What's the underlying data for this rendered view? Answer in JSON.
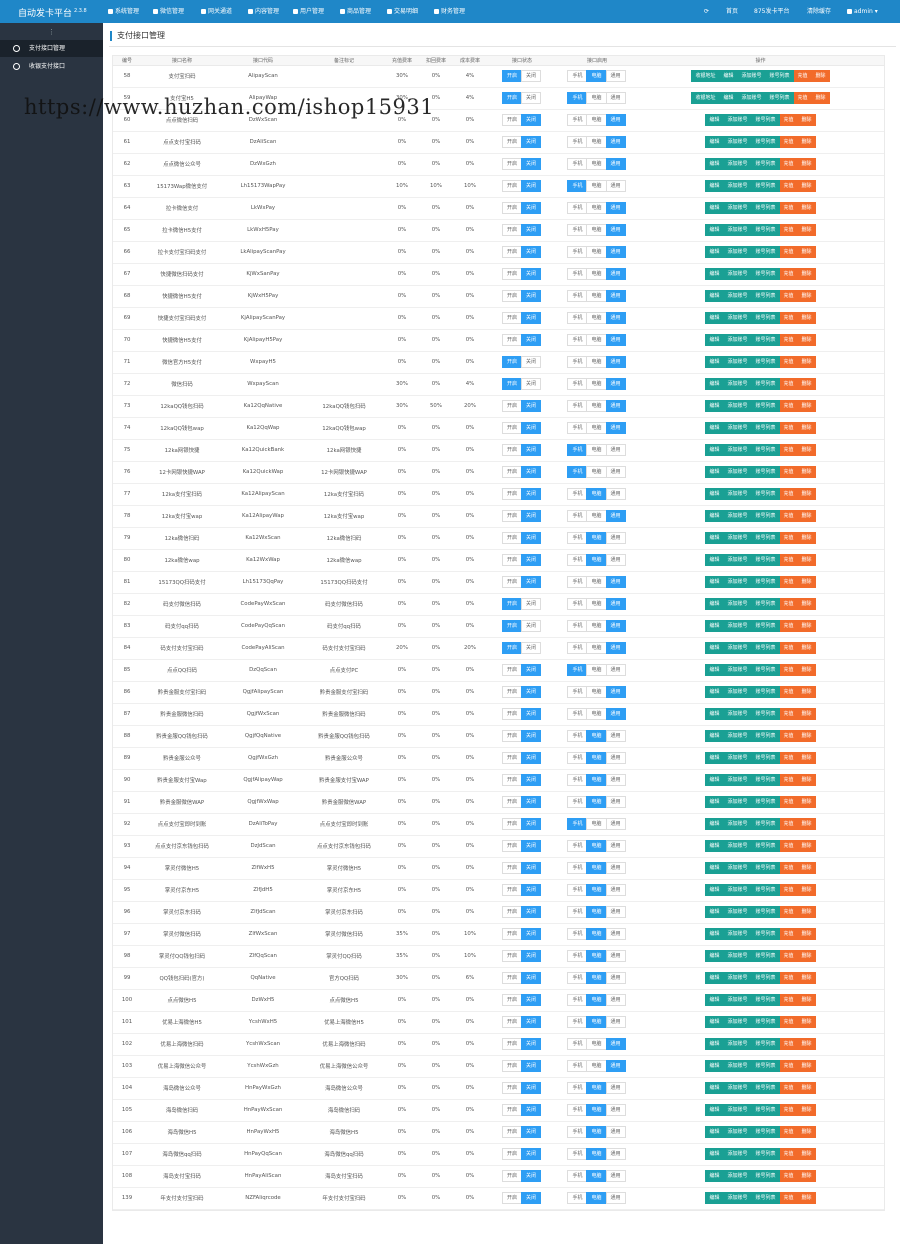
{
  "app": {
    "title": "自动发卡平台",
    "version": "2.3.8"
  },
  "topnav": [
    "系统管理",
    "微信管理",
    "网关通道",
    "内容管理",
    "用户管理",
    "商品管理",
    "交易明细",
    "财务管理"
  ],
  "topright": {
    "home": "首页",
    "site": "875发卡平台",
    "clear": "清除缓存",
    "user": "admin"
  },
  "sidebar": [
    "支付接口管理",
    "收银支付接口"
  ],
  "page": {
    "title": "支付接口管理"
  },
  "columns": [
    "编号",
    "接口名称",
    "接口代码",
    "备注标记",
    "充值费率",
    "扣回费率",
    "成本费率",
    "接口状态",
    "接口启用",
    "操作"
  ],
  "labels": {
    "open": "开启",
    "close": "关闭",
    "mobile": "手机",
    "pc": "电脑",
    "general": "通用",
    "order_addr": "收银地址",
    "edit": "编辑",
    "add_account": "添加账号",
    "account_list": "账号列表",
    "recharge": "充值",
    "delete": "删除"
  },
  "colors": {
    "topbar": "#1f87c8",
    "sidebar": "#2a3441",
    "on": "#2e9ef4",
    "green": "#1aa094",
    "orange": "#f26b2a"
  },
  "watermark": "https://www.huzhan.com/ishop15931",
  "rows": [
    {
      "id": "58",
      "name": "支付宝扫码",
      "code": "AlipayScan",
      "note": "",
      "r1": "30%",
      "r2": "0%",
      "r3": "4%",
      "status": "open",
      "mode": "pc",
      "extra": true
    },
    {
      "id": "59",
      "name": "支付宝H5",
      "code": "AlipayWap",
      "note": "",
      "r1": "30%",
      "r2": "0%",
      "r3": "4%",
      "status": "open",
      "mode": "mobile",
      "extra": true
    },
    {
      "id": "60",
      "name": "点点微信扫码",
      "code": "DzWxScan",
      "note": "",
      "r1": "0%",
      "r2": "0%",
      "r3": "0%",
      "status": "close",
      "mode": "general",
      "extra": false
    },
    {
      "id": "61",
      "name": "点点支付宝扫码",
      "code": "DzAliScan",
      "note": "",
      "r1": "0%",
      "r2": "0%",
      "r3": "0%",
      "status": "close",
      "mode": "general",
      "extra": false
    },
    {
      "id": "62",
      "name": "点点微信公众号",
      "code": "DzWxGzh",
      "note": "",
      "r1": "0%",
      "r2": "0%",
      "r3": "0%",
      "status": "close",
      "mode": "general",
      "extra": false
    },
    {
      "id": "63",
      "name": "15173Wap微信支付",
      "code": "Lh15173WapPay",
      "note": "",
      "r1": "10%",
      "r2": "10%",
      "r3": "10%",
      "status": "close",
      "mode": "mobile",
      "extra": false
    },
    {
      "id": "64",
      "name": "拉卡微信支付",
      "code": "LkWxPay",
      "note": "",
      "r1": "0%",
      "r2": "0%",
      "r3": "0%",
      "status": "close",
      "mode": "general",
      "extra": false
    },
    {
      "id": "65",
      "name": "拉卡微信H5支付",
      "code": "LkWxH5Pay",
      "note": "",
      "r1": "0%",
      "r2": "0%",
      "r3": "0%",
      "status": "close",
      "mode": "general",
      "extra": false
    },
    {
      "id": "66",
      "name": "拉卡支付宝扫码支付",
      "code": "LkAlipayScanPay",
      "note": "",
      "r1": "0%",
      "r2": "0%",
      "r3": "0%",
      "status": "close",
      "mode": "general",
      "extra": false
    },
    {
      "id": "67",
      "name": "快捷微信扫码支付",
      "code": "KjWxSanPay",
      "note": "",
      "r1": "0%",
      "r2": "0%",
      "r3": "0%",
      "status": "close",
      "mode": "general",
      "extra": false
    },
    {
      "id": "68",
      "name": "快捷微信H5支付",
      "code": "KjWxH5Pay",
      "note": "",
      "r1": "0%",
      "r2": "0%",
      "r3": "0%",
      "status": "close",
      "mode": "general",
      "extra": false
    },
    {
      "id": "69",
      "name": "快捷支付宝扫码支付",
      "code": "KjAlipayScanPay",
      "note": "",
      "r1": "0%",
      "r2": "0%",
      "r3": "0%",
      "status": "close",
      "mode": "general",
      "extra": false
    },
    {
      "id": "70",
      "name": "快捷微信H5支付",
      "code": "KjAlipayH5Pay",
      "note": "",
      "r1": "0%",
      "r2": "0%",
      "r3": "0%",
      "status": "close",
      "mode": "general",
      "extra": false
    },
    {
      "id": "71",
      "name": "微信官方H5支付",
      "code": "WxpayH5",
      "note": "",
      "r1": "0%",
      "r2": "0%",
      "r3": "0%",
      "status": "open",
      "mode": "general",
      "extra": false
    },
    {
      "id": "72",
      "name": "微信扫码",
      "code": "WxpayScan",
      "note": "",
      "r1": "30%",
      "r2": "0%",
      "r3": "4%",
      "status": "open",
      "mode": "general",
      "extra": false
    },
    {
      "id": "73",
      "name": "12kaQQ钱包扫码",
      "code": "Ka12QqNative",
      "note": "12kaQQ钱包扫码",
      "r1": "30%",
      "r2": "50%",
      "r3": "20%",
      "status": "close",
      "mode": "general",
      "extra": false
    },
    {
      "id": "74",
      "name": "12kaQQ钱包wap",
      "code": "Ka12QqWap",
      "note": "12kaQQ钱包wap",
      "r1": "0%",
      "r2": "0%",
      "r3": "0%",
      "status": "close",
      "mode": "general",
      "extra": false
    },
    {
      "id": "75",
      "name": "12ka网银快捷",
      "code": "Ka12QuickBank",
      "note": "12ka网银快捷",
      "r1": "0%",
      "r2": "0%",
      "r3": "0%",
      "status": "close",
      "mode": "mobile",
      "extra": false
    },
    {
      "id": "76",
      "name": "12卡网银快捷WAP",
      "code": "Ka12QuickWap",
      "note": "12卡网银快捷WAP",
      "r1": "0%",
      "r2": "0%",
      "r3": "0%",
      "status": "close",
      "mode": "mobile",
      "extra": false
    },
    {
      "id": "77",
      "name": "12ka支付宝扫码",
      "code": "Ka12AlipayScan",
      "note": "12ka支付宝扫码",
      "r1": "0%",
      "r2": "0%",
      "r3": "0%",
      "status": "close",
      "mode": "pc",
      "extra": false
    },
    {
      "id": "78",
      "name": "12ka支付宝wap",
      "code": "Ka12AlipayWap",
      "note": "12ka支付宝wap",
      "r1": "0%",
      "r2": "0%",
      "r3": "0%",
      "status": "close",
      "mode": "general",
      "extra": false
    },
    {
      "id": "79",
      "name": "12ka微信扫码",
      "code": "Ka12WxScan",
      "note": "12ka微信扫码",
      "r1": "0%",
      "r2": "0%",
      "r3": "0%",
      "status": "close",
      "mode": "pc",
      "extra": false
    },
    {
      "id": "80",
      "name": "12ka微信wap",
      "code": "Ka12WxWap",
      "note": "12ka微信wap",
      "r1": "0%",
      "r2": "0%",
      "r3": "0%",
      "status": "close",
      "mode": "pc",
      "extra": false
    },
    {
      "id": "81",
      "name": "15173QQ扫码支付",
      "code": "Lh15173QqPay",
      "note": "15173QQ扫码支付",
      "r1": "0%",
      "r2": "0%",
      "r3": "0%",
      "status": "close",
      "mode": "general",
      "extra": false
    },
    {
      "id": "82",
      "name": "码支付微信扫码",
      "code": "CodePayWxScan",
      "note": "码支付微信扫码",
      "r1": "0%",
      "r2": "0%",
      "r3": "0%",
      "status": "open",
      "mode": "general",
      "extra": false
    },
    {
      "id": "83",
      "name": "码支付qq扫码",
      "code": "CodePayQqScan",
      "note": "码支付qq扫码",
      "r1": "0%",
      "r2": "0%",
      "r3": "0%",
      "status": "open",
      "mode": "general",
      "extra": false
    },
    {
      "id": "84",
      "name": "码支付支付宝扫码",
      "code": "CodePayAliScan",
      "note": "码支付支付宝扫码",
      "r1": "20%",
      "r2": "0%",
      "r3": "20%",
      "status": "open",
      "mode": "general",
      "extra": false
    },
    {
      "id": "85",
      "name": "点点QQ扫码",
      "code": "DzQqScan",
      "note": "点点支付PC",
      "r1": "0%",
      "r2": "0%",
      "r3": "0%",
      "status": "close",
      "mode": "mobile",
      "extra": false
    },
    {
      "id": "86",
      "name": "黔贵金服支付宝扫码",
      "code": "QgjfAlipayScan",
      "note": "黔贵金服支付宝扫码",
      "r1": "0%",
      "r2": "0%",
      "r3": "0%",
      "status": "close",
      "mode": "general",
      "extra": false
    },
    {
      "id": "87",
      "name": "黔贵金服微信扫码",
      "code": "QgjfWxScan",
      "note": "黔贵金服微信扫码",
      "r1": "0%",
      "r2": "0%",
      "r3": "0%",
      "status": "close",
      "mode": "general",
      "extra": false
    },
    {
      "id": "88",
      "name": "黔贵金服QQ钱包扫码",
      "code": "QgjfQqNative",
      "note": "黔贵金服QQ钱包扫码",
      "r1": "0%",
      "r2": "0%",
      "r3": "0%",
      "status": "close",
      "mode": "pc",
      "extra": false
    },
    {
      "id": "89",
      "name": "黔贵金服公众号",
      "code": "QgjfWxGzh",
      "note": "黔贵金服公众号",
      "r1": "0%",
      "r2": "0%",
      "r3": "0%",
      "status": "close",
      "mode": "pc",
      "extra": false
    },
    {
      "id": "90",
      "name": "黔贵金服支付宝Wap",
      "code": "QgjfAlipayWap",
      "note": "黔贵金服支付宝WAP",
      "r1": "0%",
      "r2": "0%",
      "r3": "0%",
      "status": "close",
      "mode": "pc",
      "extra": false
    },
    {
      "id": "91",
      "name": "黔贵金服微信WAP",
      "code": "QgjfWxWap",
      "note": "黔贵金服微信WAP",
      "r1": "0%",
      "r2": "0%",
      "r3": "0%",
      "status": "close",
      "mode": "pc",
      "extra": false
    },
    {
      "id": "92",
      "name": "点点支付宝即时到账",
      "code": "DzAliToPay",
      "note": "点点支付宝即时到账",
      "r1": "0%",
      "r2": "0%",
      "r3": "0%",
      "status": "close",
      "mode": "mobile",
      "extra": false
    },
    {
      "id": "93",
      "name": "点点支付京东钱包扫码",
      "code": "DzJdScan",
      "note": "点点支付京东钱包扫码",
      "r1": "0%",
      "r2": "0%",
      "r3": "0%",
      "status": "close",
      "mode": "pc",
      "extra": false
    },
    {
      "id": "94",
      "name": "掌灵付微信H5",
      "code": "ZlfWxH5",
      "note": "掌灵付微信H5",
      "r1": "0%",
      "r2": "0%",
      "r3": "0%",
      "status": "close",
      "mode": "pc",
      "extra": false
    },
    {
      "id": "95",
      "name": "掌灵付京东H5",
      "code": "ZlfJdH5",
      "note": "掌灵付京东H5",
      "r1": "0%",
      "r2": "0%",
      "r3": "0%",
      "status": "close",
      "mode": "pc",
      "extra": false
    },
    {
      "id": "96",
      "name": "掌灵付京东扫码",
      "code": "ZlfJdScan",
      "note": "掌灵付京东扫码",
      "r1": "0%",
      "r2": "0%",
      "r3": "0%",
      "status": "close",
      "mode": "pc",
      "extra": false
    },
    {
      "id": "97",
      "name": "掌灵付微信扫码",
      "code": "ZlfWxScan",
      "note": "掌灵付微信扫码",
      "r1": "35%",
      "r2": "0%",
      "r3": "10%",
      "status": "close",
      "mode": "pc",
      "extra": false
    },
    {
      "id": "98",
      "name": "掌灵付QQ钱包扫码",
      "code": "ZlfQqScan",
      "note": "掌灵付QQ扫码",
      "r1": "35%",
      "r2": "0%",
      "r3": "10%",
      "status": "close",
      "mode": "pc",
      "extra": false
    },
    {
      "id": "99",
      "name": "QQ钱包扫码(官方)",
      "code": "QqNative",
      "note": "官方QQ扫码",
      "r1": "30%",
      "r2": "0%",
      "r3": "6%",
      "status": "close",
      "mode": "pc",
      "extra": false
    },
    {
      "id": "100",
      "name": "点点微信H5",
      "code": "DzWxH5",
      "note": "点点微信H5",
      "r1": "0%",
      "r2": "0%",
      "r3": "0%",
      "status": "close",
      "mode": "pc",
      "extra": false
    },
    {
      "id": "101",
      "name": "优易上海微信H5",
      "code": "YcshWxH5",
      "note": "优易上海微信H5",
      "r1": "0%",
      "r2": "0%",
      "r3": "0%",
      "status": "close",
      "mode": "pc",
      "extra": false
    },
    {
      "id": "102",
      "name": "优易上海微信扫码",
      "code": "YcshWxScan",
      "note": "优易上海微信扫码",
      "r1": "0%",
      "r2": "0%",
      "r3": "0%",
      "status": "close",
      "mode": "general",
      "extra": false
    },
    {
      "id": "103",
      "name": "优易上海微信公众号",
      "code": "YcshWxGzh",
      "note": "优易上海微信公众号",
      "r1": "0%",
      "r2": "0%",
      "r3": "0%",
      "status": "close",
      "mode": "general",
      "extra": false
    },
    {
      "id": "104",
      "name": "海岛微信公众号",
      "code": "HnPayWxGzh",
      "note": "海岛微信公众号",
      "r1": "0%",
      "r2": "0%",
      "r3": "0%",
      "status": "close",
      "mode": "pc",
      "extra": false
    },
    {
      "id": "105",
      "name": "海岛微信扫码",
      "code": "HnPayWxScan",
      "note": "海岛微信扫码",
      "r1": "0%",
      "r2": "0%",
      "r3": "0%",
      "status": "close",
      "mode": "pc",
      "extra": false
    },
    {
      "id": "106",
      "name": "海岛微信H5",
      "code": "HnPayWxH5",
      "note": "海岛微信H5",
      "r1": "0%",
      "r2": "0%",
      "r3": "0%",
      "status": "close",
      "mode": "pc",
      "extra": false
    },
    {
      "id": "107",
      "name": "海岛微信qq扫码",
      "code": "HnPayQqScan",
      "note": "海岛微信qq扫码",
      "r1": "0%",
      "r2": "0%",
      "r3": "0%",
      "status": "close",
      "mode": "pc",
      "extra": false
    },
    {
      "id": "108",
      "name": "海岛支付宝扫码",
      "code": "HnPayAliScan",
      "note": "海岛支付宝扫码",
      "r1": "0%",
      "r2": "0%",
      "r3": "0%",
      "status": "close",
      "mode": "pc",
      "extra": false
    },
    {
      "id": "139",
      "name": "年支付支付宝扫码",
      "code": "NZFAliqrcode",
      "note": "年支付支付宝扫码",
      "r1": "0%",
      "r2": "0%",
      "r3": "0%",
      "status": "close",
      "mode": "pc",
      "extra": false
    }
  ]
}
